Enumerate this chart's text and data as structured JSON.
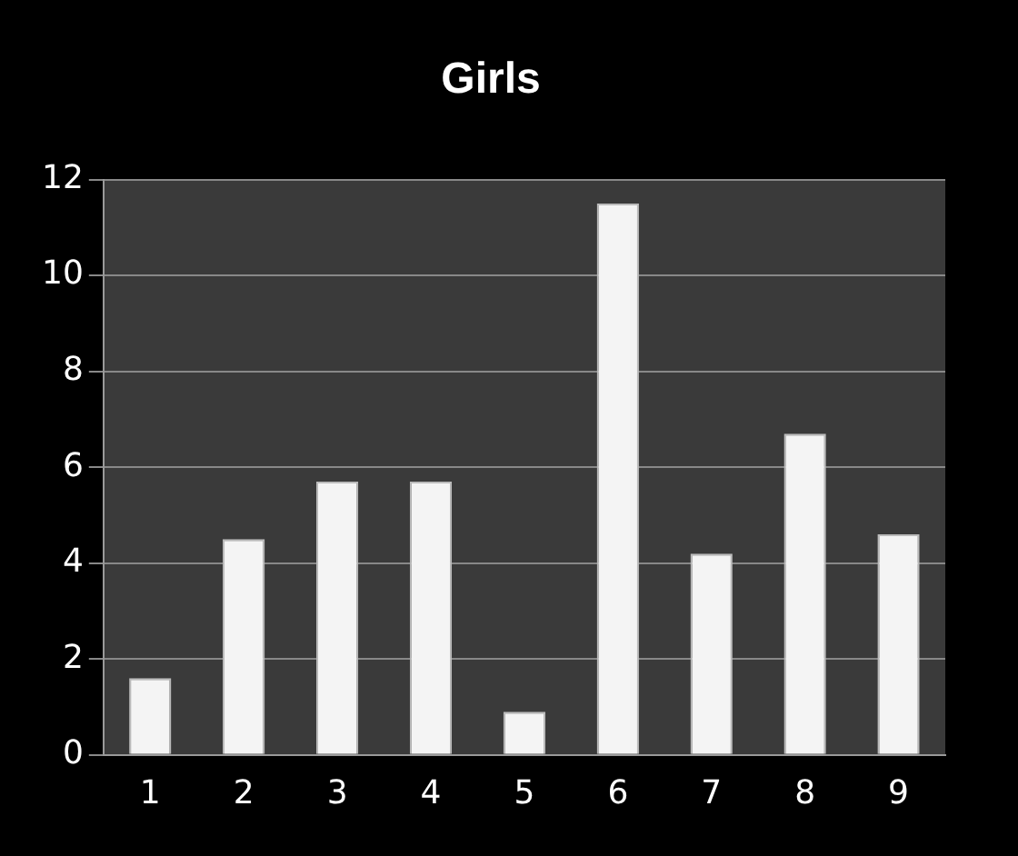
{
  "chart_data": {
    "type": "bar",
    "title": "Girls",
    "categories": [
      "1",
      "2",
      "3",
      "4",
      "5",
      "6",
      "7",
      "8",
      "9"
    ],
    "values": [
      1.6,
      4.5,
      5.7,
      5.7,
      0.9,
      11.5,
      4.2,
      6.7,
      4.6
    ],
    "color": "#f4f4f4",
    "ylim": [
      0,
      12
    ],
    "yticks": [
      0,
      2,
      4,
      6,
      8,
      10,
      12
    ],
    "grid": "y",
    "legend": false
  }
}
